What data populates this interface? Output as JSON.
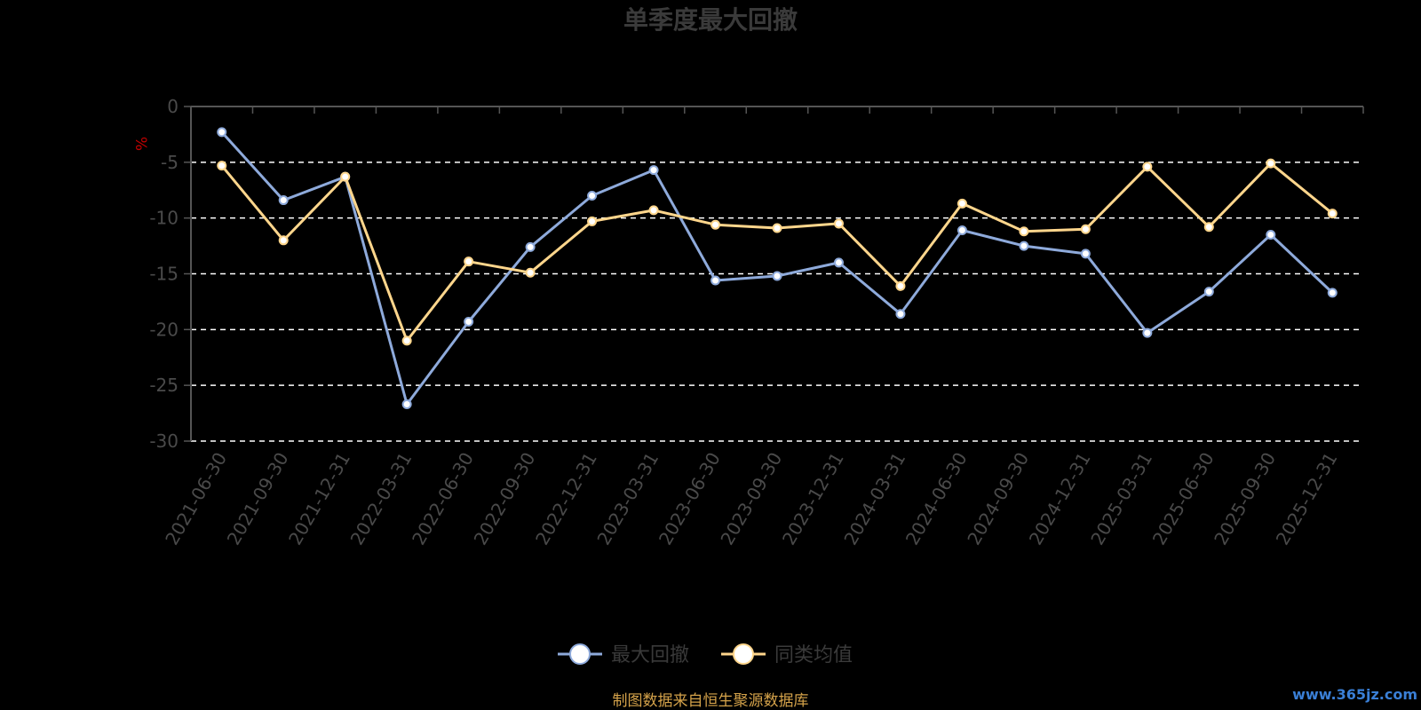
{
  "chart_data": {
    "type": "line",
    "title": "单季度最大回撤",
    "ylabel": "%",
    "ylim": [
      -30,
      0
    ],
    "yticks": [
      0,
      -5,
      -10,
      -15,
      -20,
      -25,
      -30
    ],
    "grid": true,
    "legend_position": "bottom-center",
    "categories": [
      "2021-06-30",
      "2021-09-30",
      "2021-12-31",
      "2022-03-31",
      "2022-06-30",
      "2022-09-30",
      "2022-12-31",
      "2023-03-31",
      "2023-06-30",
      "2023-09-30",
      "2023-12-31",
      "2024-03-31",
      "2024-06-30",
      "2024-09-30",
      "2024-12-31",
      "2025-03-31",
      "2025-06-30",
      "2025-09-30",
      "2025-12-31"
    ],
    "series": [
      {
        "name": "最大回撤",
        "color": "#8eaadb",
        "values": [
          -2.3,
          -8.4,
          -6.3,
          -26.7,
          -19.3,
          -12.6,
          -8.0,
          -5.7,
          -15.6,
          -15.2,
          -14.0,
          -18.6,
          -11.1,
          -12.5,
          -13.2,
          -20.3,
          -16.6,
          -11.5,
          -16.7
        ]
      },
      {
        "name": "同类均值",
        "color": "#ffd68c",
        "values": [
          -5.3,
          -12.0,
          -6.3,
          -21.0,
          -13.9,
          -14.9,
          -10.3,
          -9.3,
          -10.6,
          -10.9,
          -10.5,
          -16.1,
          -8.7,
          -11.2,
          -11.0,
          -5.4,
          -10.8,
          -5.1,
          -9.6
        ]
      }
    ]
  },
  "footer": {
    "source": "制图数据来自恒生聚源数据库",
    "watermark": "www.365jz.com"
  },
  "colors": {
    "background": "#000000",
    "grid": "#ffffff",
    "axis": "#555555",
    "unit": "#c00000",
    "source": "#d4a24a",
    "watermark": "#3a7fd6"
  }
}
